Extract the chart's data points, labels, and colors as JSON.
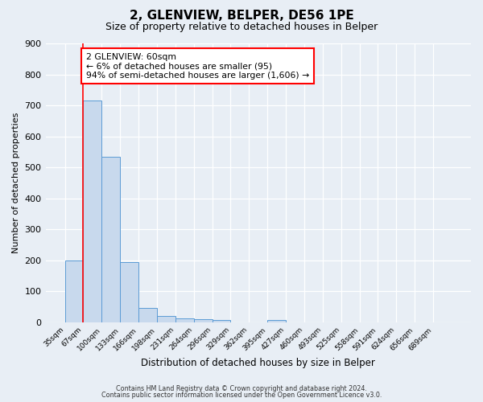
{
  "title": "2, GLENVIEW, BELPER, DE56 1PE",
  "subtitle": "Size of property relative to detached houses in Belper",
  "xlabel": "Distribution of detached houses by size in Belper",
  "ylabel": "Number of detached properties",
  "bar_vals": [
    200,
    715,
    535,
    193,
    45,
    20,
    13,
    10,
    8,
    0,
    0,
    8,
    0,
    0,
    0,
    0,
    0,
    0,
    0,
    0,
    0
  ],
  "categories": [
    "35sqm",
    "67sqm",
    "100sqm",
    "133sqm",
    "166sqm",
    "198sqm",
    "231sqm",
    "264sqm",
    "296sqm",
    "329sqm",
    "362sqm",
    "395sqm",
    "427sqm",
    "460sqm",
    "493sqm",
    "525sqm",
    "558sqm",
    "591sqm",
    "624sqm",
    "656sqm",
    "689sqm"
  ],
  "bar_color": "#c8d9ed",
  "bar_edge_color": "#5b9bd5",
  "red_line_x": 1,
  "ylim": [
    0,
    900
  ],
  "yticks": [
    0,
    100,
    200,
    300,
    400,
    500,
    600,
    700,
    800,
    900
  ],
  "annotation_text_line1": "2 GLENVIEW: 60sqm",
  "annotation_text_line2": "← 6% of detached houses are smaller (95)",
  "annotation_text_line3": "94% of semi-detached houses are larger (1,606) →",
  "footer_line1": "Contains HM Land Registry data © Crown copyright and database right 2024.",
  "footer_line2": "Contains public sector information licensed under the Open Government Licence v3.0.",
  "bg_color": "#e8eef5",
  "plot_bg_color": "#e8eef5"
}
